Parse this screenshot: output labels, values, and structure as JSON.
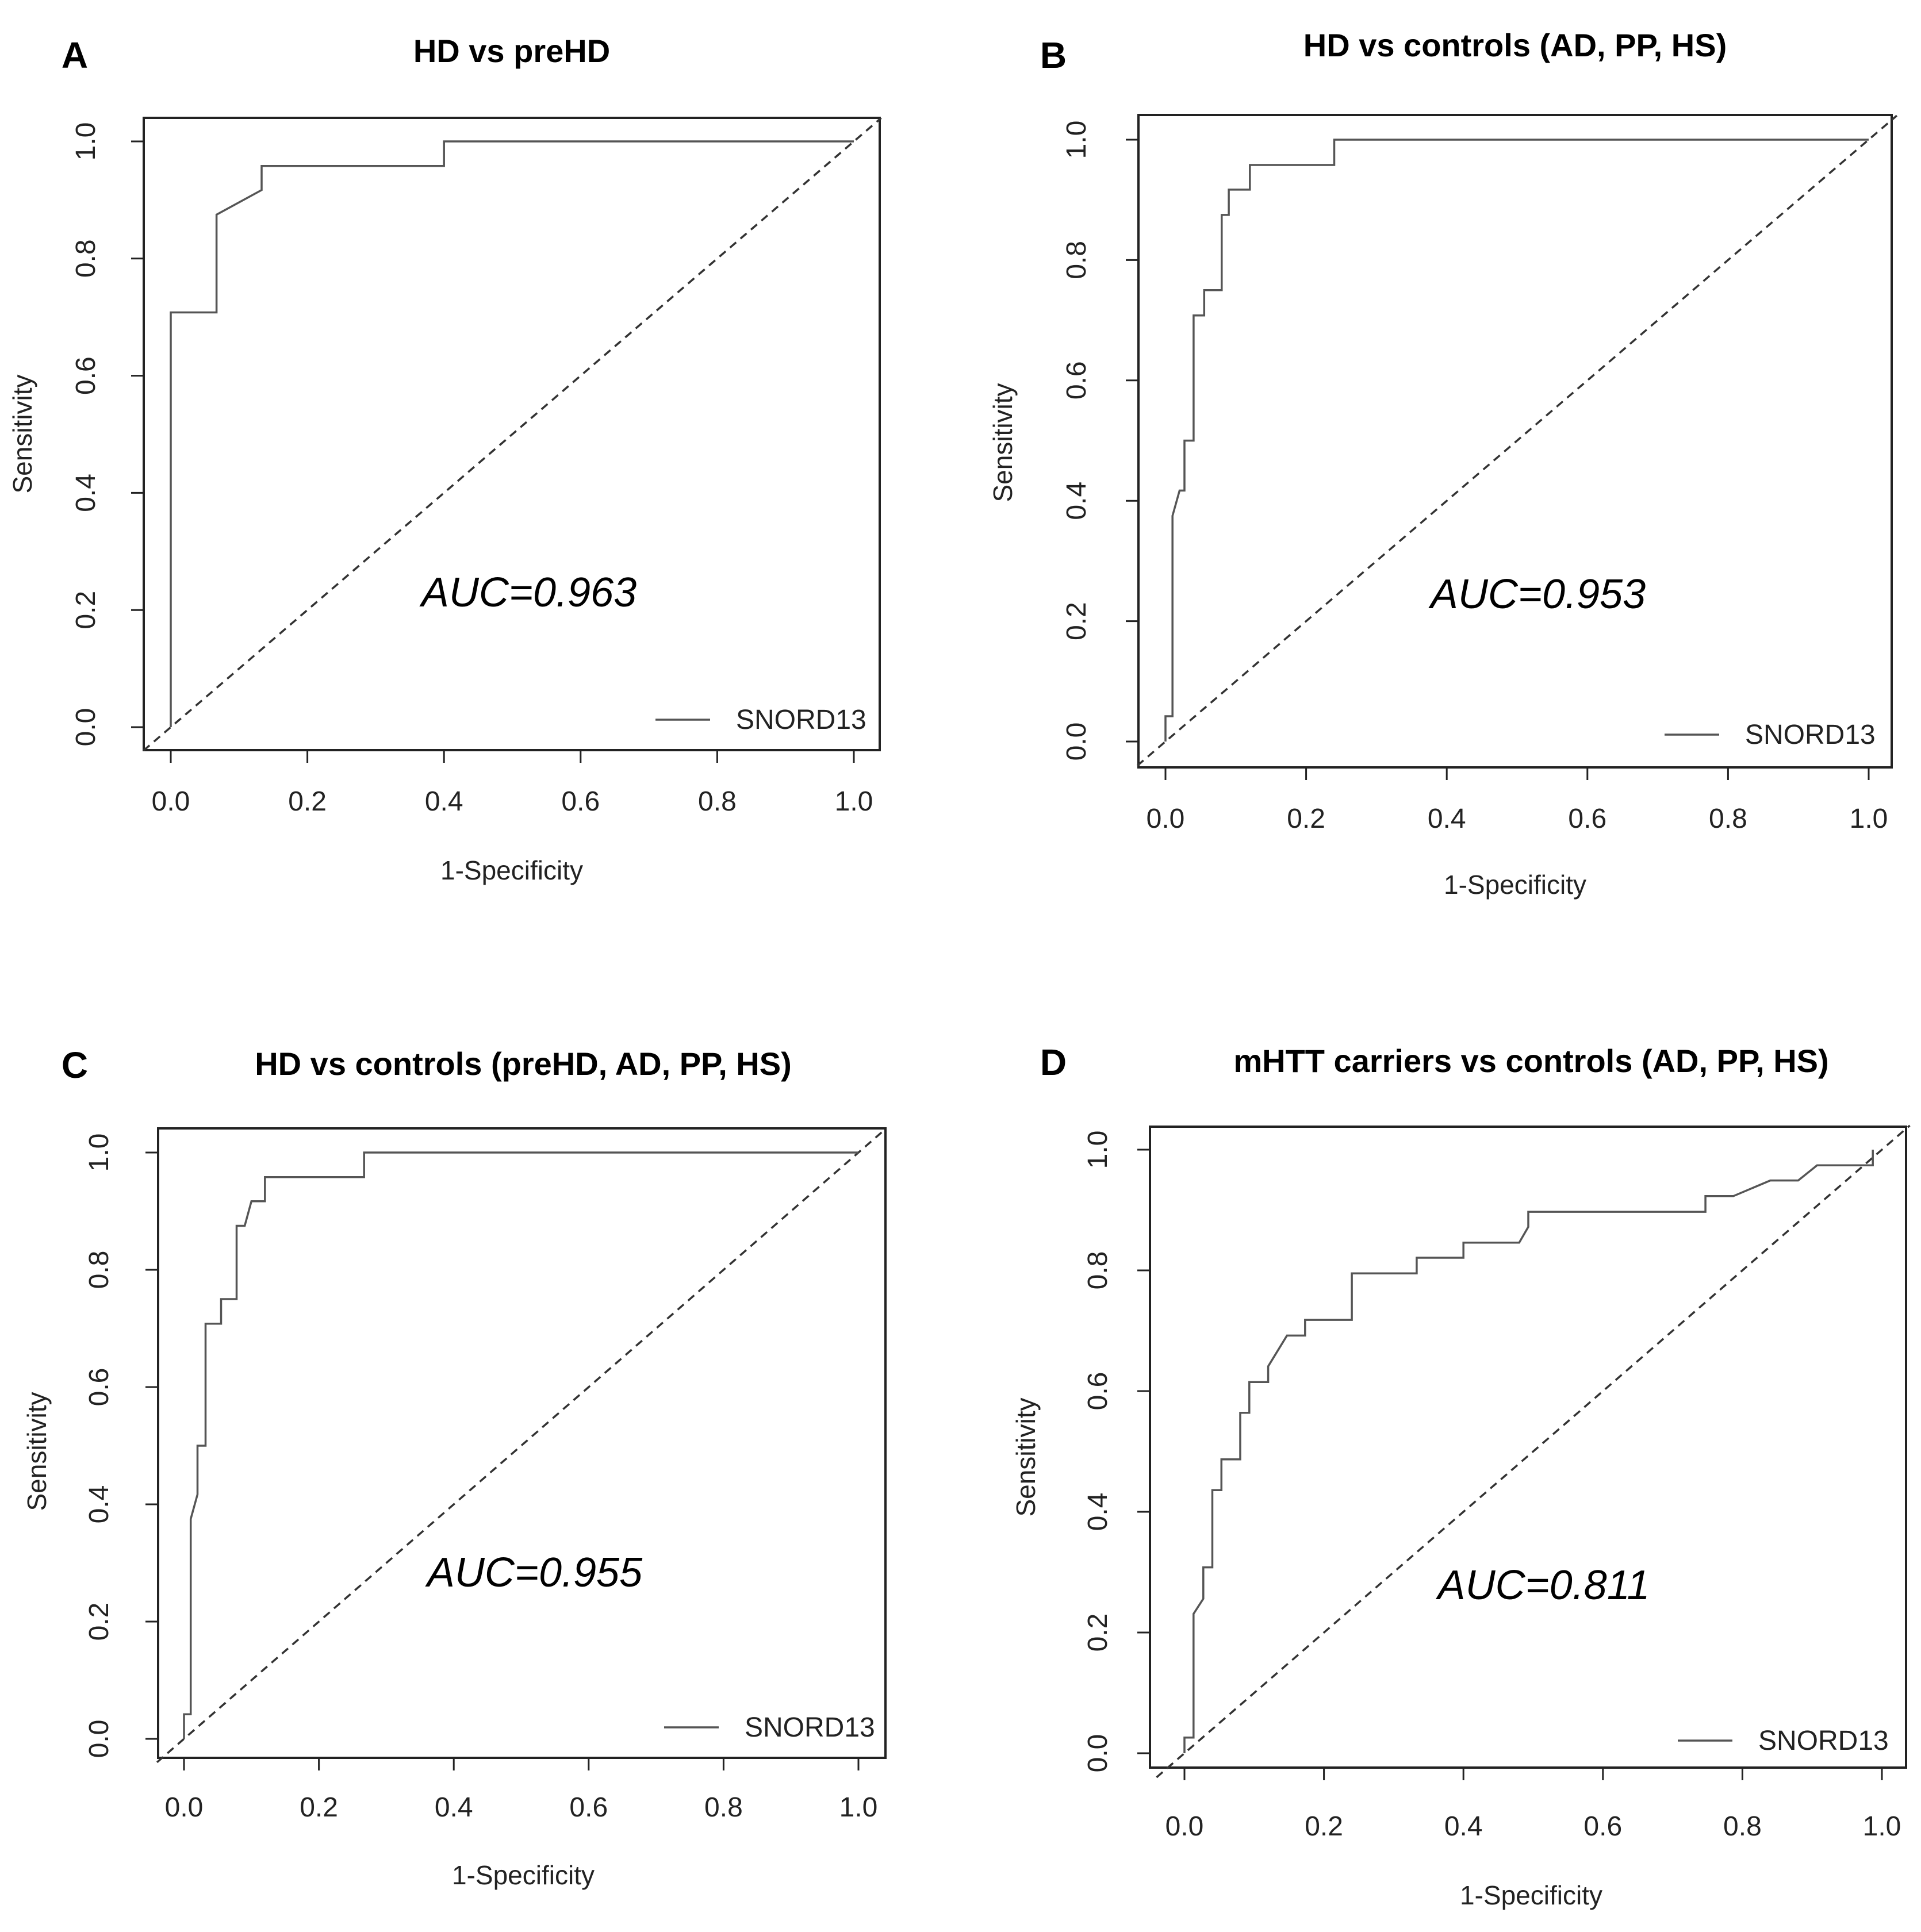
{
  "chart_data": [
    {
      "id": "a",
      "type": "line",
      "panel_letter": "A",
      "title": "HD vs preHD",
      "xlabel": "1-Specificity",
      "ylabel": "Sensitivity",
      "xlim": [
        0,
        1
      ],
      "ylim": [
        0,
        1
      ],
      "xticks": [
        "0.0",
        "0.2",
        "0.4",
        "0.6",
        "0.8",
        "1.0"
      ],
      "yticks": [
        "0.0",
        "0.2",
        "0.4",
        "0.6",
        "0.8",
        "1.0"
      ],
      "annotation": "AUC=0.963",
      "legend": "SNORD13",
      "legend_position": "bottom-right",
      "series": [
        {
          "name": "SNORD13",
          "x": [
            0,
            0,
            0.067,
            0.067,
            0.133,
            0.133,
            0.4,
            0.4,
            1.0
          ],
          "y": [
            0,
            0.708,
            0.708,
            0.875,
            0.917,
            0.958,
            0.958,
            1.0,
            1.0
          ]
        }
      ],
      "reference_line": {
        "x": [
          0,
          1
        ],
        "y": [
          0,
          1
        ]
      }
    },
    {
      "id": "b",
      "type": "line",
      "panel_letter": "B",
      "title": "HD vs controls (AD, PP, HS)",
      "xlabel": "1-Specificity",
      "ylabel": "Sensitivity",
      "xlim": [
        0,
        1
      ],
      "ylim": [
        0,
        1
      ],
      "xticks": [
        "0.0",
        "0.2",
        "0.4",
        "0.6",
        "0.8",
        "1.0"
      ],
      "yticks": [
        "0.0",
        "0.2",
        "0.4",
        "0.6",
        "0.8",
        "1.0"
      ],
      "annotation": "AUC=0.953",
      "legend": "SNORD13",
      "legend_position": "bottom-right",
      "series": [
        {
          "name": "SNORD13",
          "x": [
            0,
            0,
            0.01,
            0.01,
            0.02,
            0.027,
            0.027,
            0.04,
            0.04,
            0.055,
            0.055,
            0.08,
            0.08,
            0.09,
            0.09,
            0.12,
            0.12,
            0.24,
            0.24,
            1.0
          ],
          "y": [
            0,
            0.042,
            0.042,
            0.375,
            0.417,
            0.417,
            0.5,
            0.5,
            0.708,
            0.708,
            0.75,
            0.75,
            0.875,
            0.875,
            0.917,
            0.917,
            0.958,
            0.958,
            1.0,
            1.0
          ]
        }
      ],
      "reference_line": {
        "x": [
          0,
          1
        ],
        "y": [
          0,
          1
        ]
      }
    },
    {
      "id": "c",
      "type": "line",
      "panel_letter": "C",
      "title": "HD vs controls (preHD, AD, PP, HS)",
      "xlabel": "1-Specificity",
      "ylabel": "Sensitivity",
      "xlim": [
        0,
        1
      ],
      "ylim": [
        0,
        1
      ],
      "xticks": [
        "0.0",
        "0.2",
        "0.4",
        "0.6",
        "0.8",
        "1.0"
      ],
      "yticks": [
        "0.0",
        "0.2",
        "0.4",
        "0.6",
        "0.8",
        "1.0"
      ],
      "annotation": "AUC=0.955",
      "legend": "SNORD13",
      "legend_position": "bottom-right",
      "series": [
        {
          "name": "SNORD13",
          "x": [
            0,
            0,
            0.01,
            0.01,
            0.02,
            0.02,
            0.032,
            0.032,
            0.055,
            0.055,
            0.078,
            0.078,
            0.09,
            0.1,
            0.12,
            0.12,
            0.267,
            0.267,
            1.0
          ],
          "y": [
            0,
            0.042,
            0.042,
            0.375,
            0.417,
            0.5,
            0.5,
            0.708,
            0.708,
            0.75,
            0.75,
            0.875,
            0.875,
            0.917,
            0.917,
            0.958,
            0.958,
            1.0,
            1.0
          ]
        }
      ],
      "reference_line": {
        "x": [
          0,
          1
        ],
        "y": [
          0,
          1
        ]
      }
    },
    {
      "id": "d",
      "type": "line",
      "panel_letter": "D",
      "title": "mHTT carriers vs controls (AD, PP, HS)",
      "xlabel": "1-Specificity",
      "ylabel": "Sensitivity",
      "xlim": [
        0,
        1
      ],
      "ylim": [
        0,
        1
      ],
      "xticks": [
        "0.0",
        "0.2",
        "0.4",
        "0.6",
        "0.8",
        "1.0"
      ],
      "yticks": [
        "0.0",
        "0.2",
        "0.4",
        "0.6",
        "0.8",
        "1.0"
      ],
      "annotation": "AUC=0.811",
      "legend": "SNORD13",
      "legend_position": "bottom-right",
      "series": [
        {
          "name": "SNORD13",
          "x": [
            0,
            0,
            0.013,
            0.013,
            0.027,
            0.027,
            0.04,
            0.04,
            0.053,
            0.053,
            0.08,
            0.08,
            0.093,
            0.093,
            0.12,
            0.12,
            0.147,
            0.173,
            0.173,
            0.24,
            0.24,
            0.32,
            0.333,
            0.333,
            0.387,
            0.4,
            0.4,
            0.48,
            0.493,
            0.493,
            0.747,
            0.747,
            0.787,
            0.84,
            0.88,
            0.907,
            0.987,
            0.987
          ],
          "y": [
            0,
            0.026,
            0.026,
            0.231,
            0.256,
            0.308,
            0.308,
            0.436,
            0.436,
            0.487,
            0.487,
            0.564,
            0.564,
            0.615,
            0.615,
            0.641,
            0.692,
            0.692,
            0.718,
            0.718,
            0.795,
            0.795,
            0.795,
            0.821,
            0.821,
            0.821,
            0.846,
            0.846,
            0.872,
            0.897,
            0.897,
            0.923,
            0.923,
            0.949,
            0.949,
            0.974,
            0.974,
            1.0
          ]
        }
      ],
      "reference_line": {
        "x": [
          0,
          1
        ],
        "y": [
          0,
          1
        ]
      }
    }
  ]
}
